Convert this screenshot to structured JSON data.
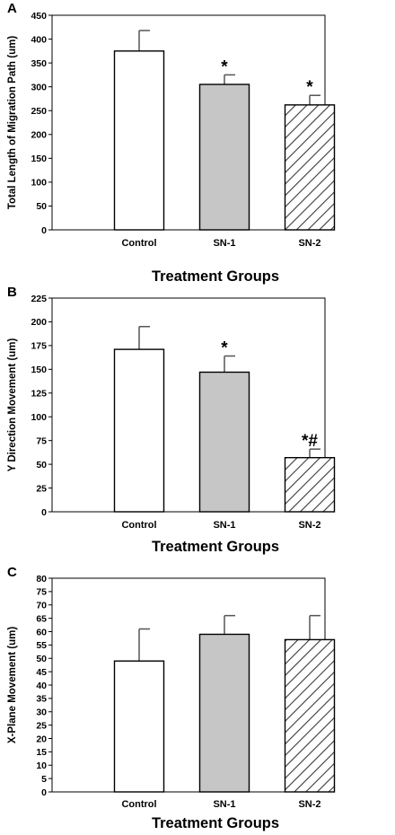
{
  "chart_data": [
    {
      "panel": "A",
      "type": "bar",
      "categories": [
        "Control",
        "SN-1",
        "SN-2"
      ],
      "values": [
        375,
        305,
        262
      ],
      "errors": [
        43,
        20,
        20
      ],
      "annotations": [
        "",
        "*",
        "*"
      ],
      "bar_fills": [
        "white",
        "gray",
        "hatched"
      ],
      "ylabel": "Total Length of Migration Path (um)",
      "xlabel": "Treatment Groups",
      "ylim": [
        0,
        450
      ],
      "yticks": [
        0,
        50,
        100,
        150,
        200,
        250,
        300,
        350,
        400,
        450
      ]
    },
    {
      "panel": "B",
      "type": "bar",
      "categories": [
        "Control",
        "SN-1",
        "SN-2"
      ],
      "values": [
        171,
        147,
        57
      ],
      "errors": [
        24,
        17,
        9
      ],
      "annotations": [
        "",
        "*",
        "*#"
      ],
      "bar_fills": [
        "white",
        "gray",
        "hatched"
      ],
      "ylabel": "Y Direction Movement (um)",
      "xlabel": "Treatment Groups",
      "ylim": [
        0,
        225
      ],
      "yticks": [
        0,
        25,
        50,
        75,
        100,
        125,
        150,
        175,
        200,
        225
      ]
    },
    {
      "panel": "C",
      "type": "bar",
      "categories": [
        "Control",
        "SN-1",
        "SN-2"
      ],
      "values": [
        49,
        59,
        57
      ],
      "errors": [
        12,
        7,
        9
      ],
      "annotations": [
        "",
        "",
        ""
      ],
      "bar_fills": [
        "white",
        "gray",
        "hatched"
      ],
      "ylabel": "X-Plane Movement (um)",
      "xlabel": "Treatment Groups",
      "ylim": [
        0,
        80
      ],
      "yticks": [
        0,
        5,
        10,
        15,
        20,
        25,
        30,
        35,
        40,
        45,
        50,
        55,
        60,
        65,
        70,
        75,
        80
      ]
    }
  ],
  "colors": {
    "bar_gray": "#c6c6c6",
    "hatch": "#3a3a3a",
    "axis": "#000000",
    "error_bar": "#555555"
  }
}
